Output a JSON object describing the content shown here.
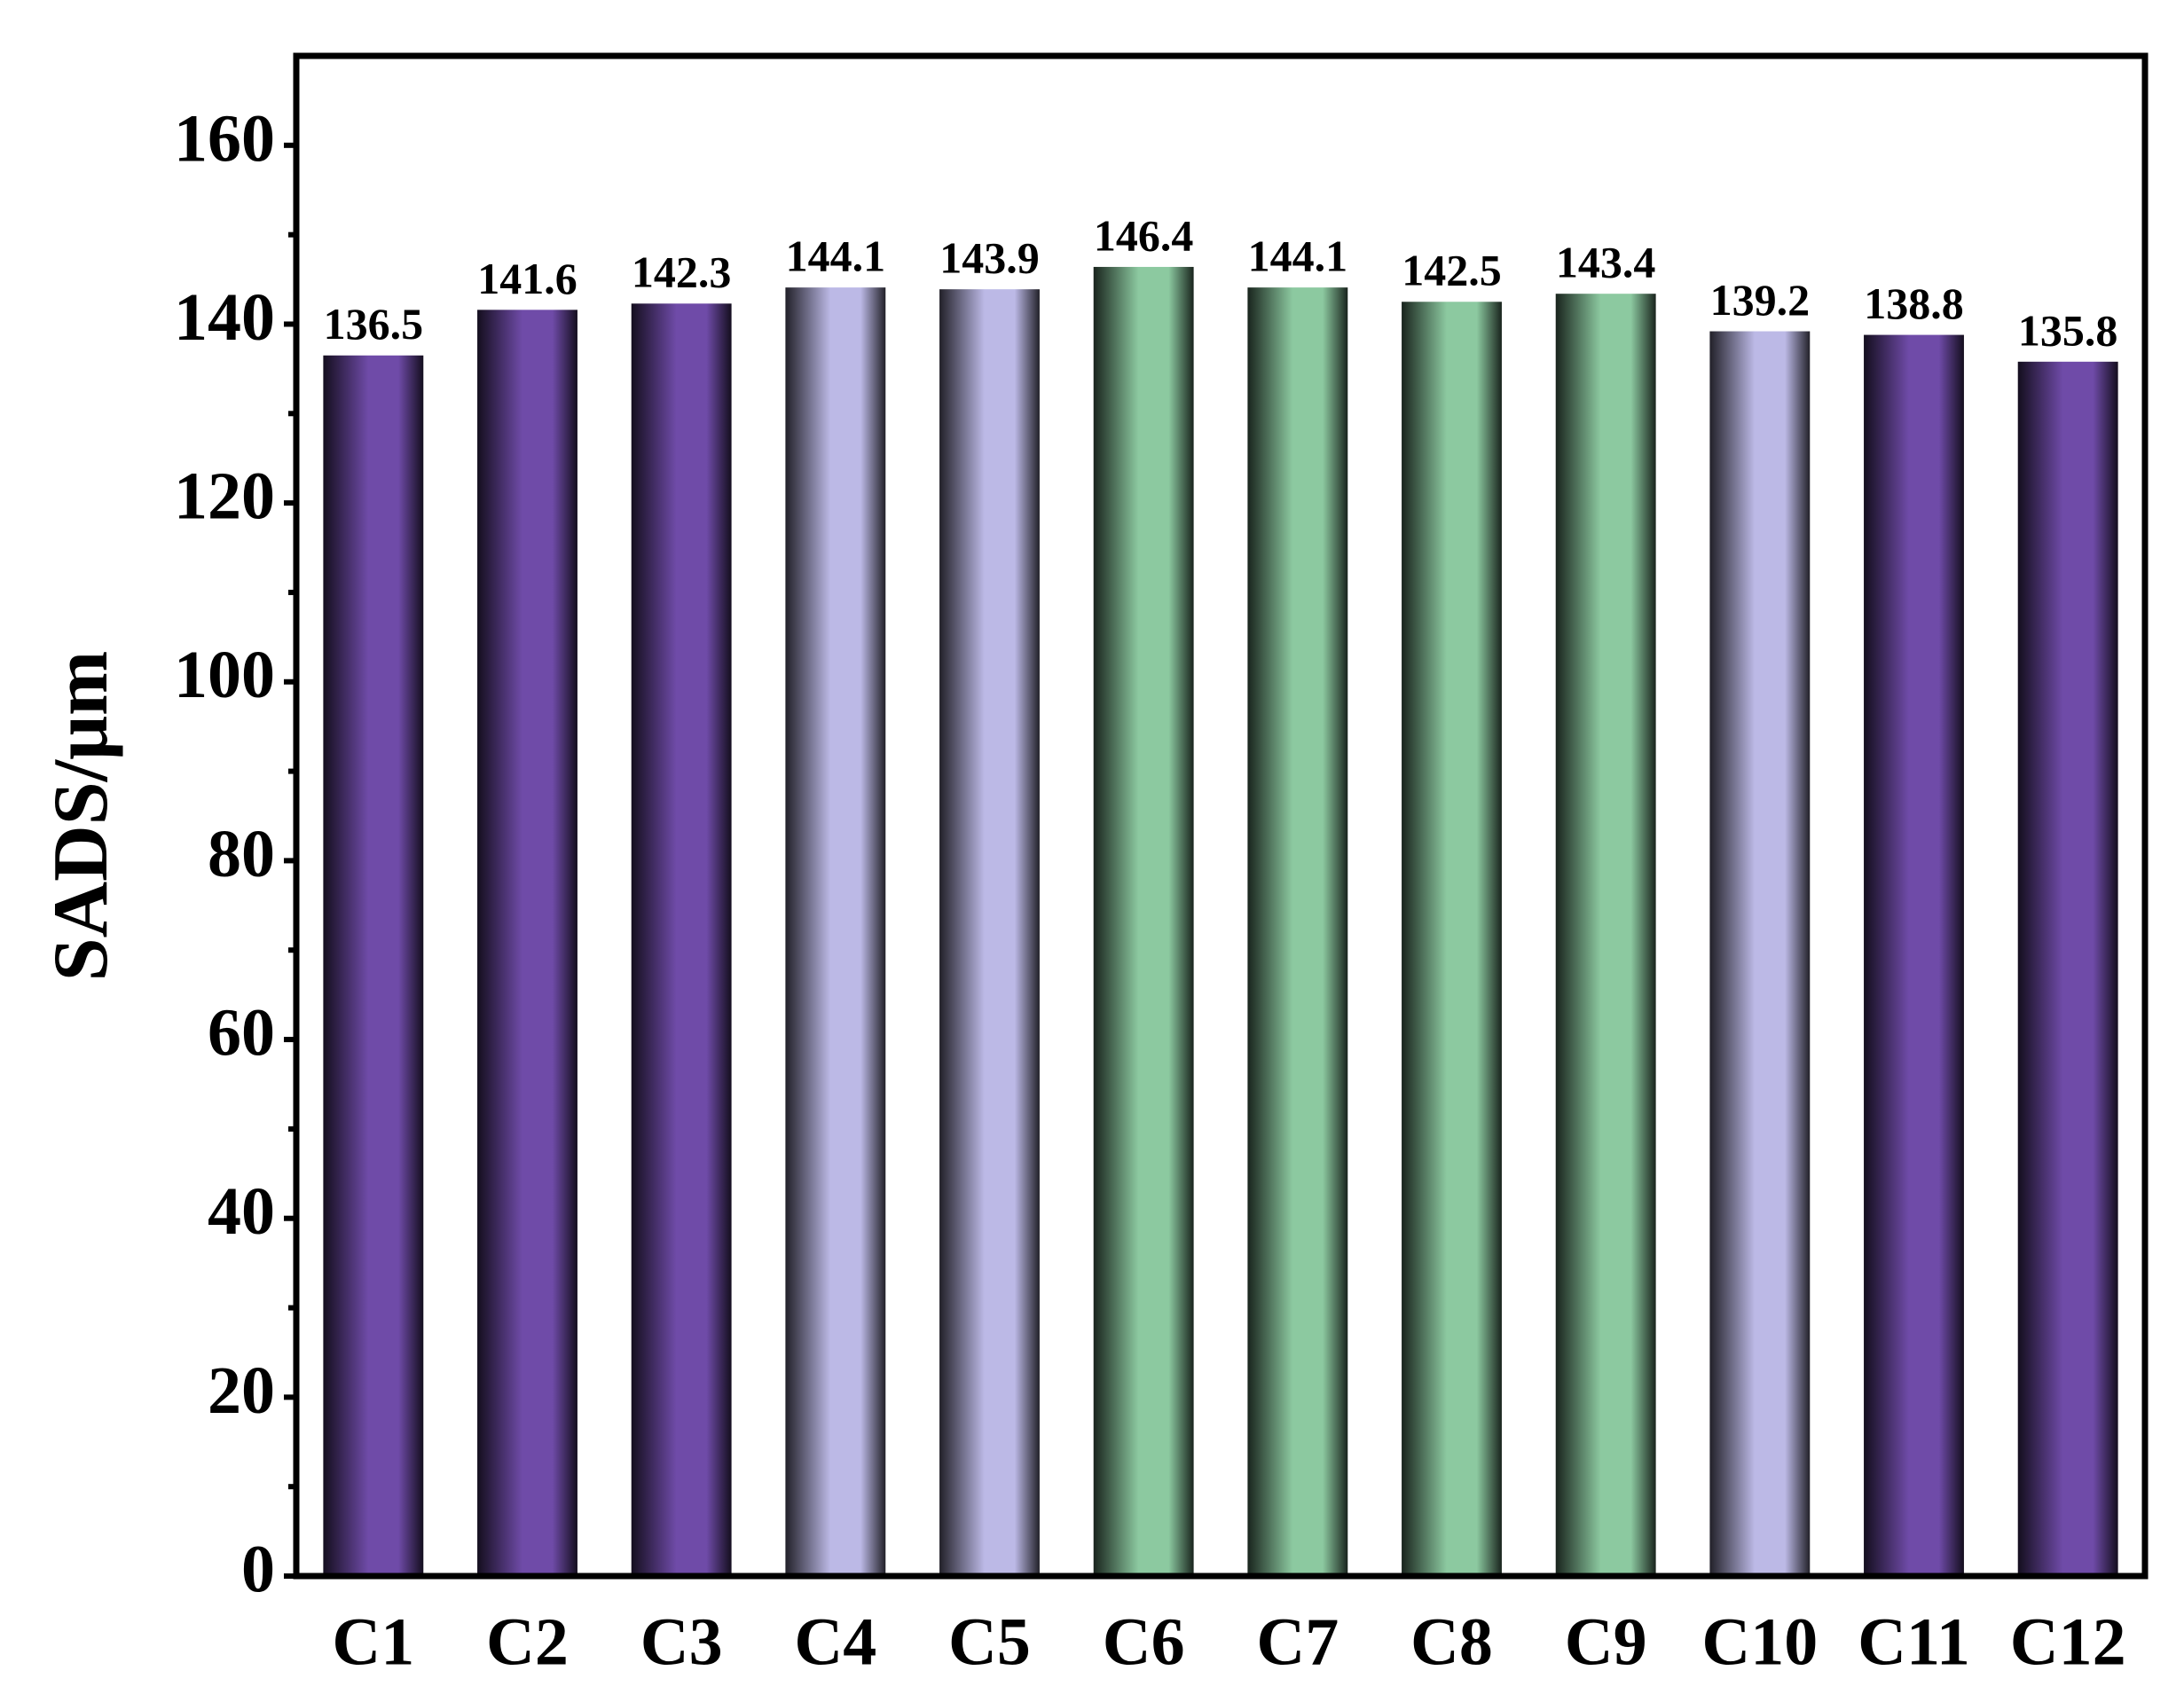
{
  "chart_data": {
    "type": "bar",
    "ylabel": "SADS/μm",
    "categories": [
      "C1",
      "C2",
      "C3",
      "C4",
      "C5",
      "C6",
      "C7",
      "C8",
      "C9",
      "C10",
      "C11",
      "C12"
    ],
    "values": [
      136.5,
      141.6,
      142.3,
      144.1,
      143.9,
      146.4,
      144.1,
      142.5,
      143.4,
      139.2,
      138.8,
      135.8
    ],
    "colors": [
      "#6f4ba8",
      "#6f4ba8",
      "#6f4ba8",
      "#bcb9e6",
      "#bcb9e6",
      "#8cc9a0",
      "#8cc9a0",
      "#8cc9a0",
      "#8cc9a0",
      "#bcb9e6",
      "#6f4ba8",
      "#6f4ba8"
    ],
    "ylim": [
      0,
      170
    ],
    "yticks": [
      0,
      20,
      40,
      60,
      80,
      100,
      120,
      140,
      160
    ],
    "yminorticks": [
      10,
      30,
      50,
      70,
      90,
      110,
      130,
      150
    ],
    "grid": false
  }
}
